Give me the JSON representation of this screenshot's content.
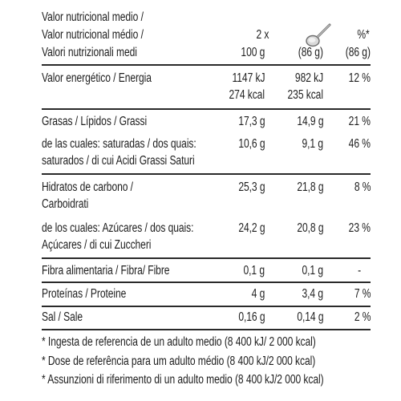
{
  "header": {
    "line1": "Valor nutricional medio /",
    "line2": "Valor nutricional médio /",
    "line3": "Valori nutrizionali medi",
    "col_100g": "100 g",
    "col_portion_count": "2 x",
    "col_portion_weight": "(86 g)",
    "col_percent_label": "%*",
    "col_percent_weight": "(86 g)"
  },
  "icons": {
    "spoon": "spoon-icon"
  },
  "rows": [
    {
      "label1": "Valor energético / Energia",
      "label2": "",
      "v100_1": "1147 kJ",
      "v100_2": "274 kcal",
      "vpor_1": "982 kJ",
      "vpor_2": "235 kcal",
      "pct": "12 %"
    },
    {
      "label1": "Grasas / Lípidos / Grassi",
      "label2": "",
      "v100_1": "17,3 g",
      "vpor_1": "14,9 g",
      "pct": "21 %"
    },
    {
      "label1": "de las cuales: saturadas / dos quais:",
      "label2": "saturados /  di cui Acidi Grassi Saturi",
      "v100_1": "10,6 g",
      "vpor_1": "9,1 g",
      "pct": "46 %"
    },
    {
      "label1": "Hidratos de carbono /",
      "label2": "Carboidrati",
      "v100_1": "25,3 g",
      "vpor_1": "21,8 g",
      "pct": "8 %"
    },
    {
      "label1": "de los cuales: Azúcares / dos quais:",
      "label2": "Açúcares / di cui Zuccheri",
      "v100_1": "24,2 g",
      "vpor_1": "20,8 g",
      "pct": "23 %"
    },
    {
      "label1": "Fibra alimentaria / Fibra/ Fibre",
      "label2": "",
      "v100_1": "0,1 g",
      "vpor_1": "0,1 g",
      "pct": "-"
    },
    {
      "label1": "Proteínas / Proteine",
      "label2": "",
      "v100_1": "4 g",
      "vpor_1": "3,4 g",
      "pct": "7 %"
    },
    {
      "label1": "Sal / Sale",
      "label2": "",
      "v100_1": "0,16 g",
      "vpor_1": "0,14 g",
      "pct": "2 %"
    }
  ],
  "footnotes": [
    "* Ingesta de referencia de un adulto medio (8 400 kJ/ 2 000 kcal)",
    "* Dose de referência para um adulto médio (8 400 kJ/2 000 kcal)",
    "* Assunzioni di riferimento di un adulto medio (8 400 kJ/2 000 kcal)"
  ]
}
